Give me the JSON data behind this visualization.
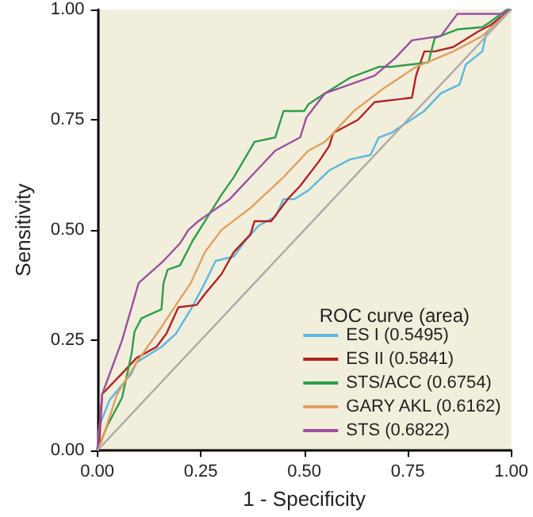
{
  "chart_data": {
    "type": "line",
    "xlabel": "1 - Specificity",
    "ylabel": "Sensitivity",
    "legend_title": "ROC curve (area)",
    "legend": "bottom right",
    "grid": false,
    "marker": "none",
    "line_style": "solid",
    "xlim": [
      0,
      1
    ],
    "ylim": [
      0,
      1
    ],
    "xticks": [
      {
        "value": 0,
        "label": "0.00"
      },
      {
        "value": 0.25,
        "label": "0.25"
      },
      {
        "value": 0.5,
        "label": "0.50"
      },
      {
        "value": 0.75,
        "label": "0.75"
      },
      {
        "value": 1,
        "label": "1.00"
      }
    ],
    "yticks": [
      {
        "value": 0,
        "label": "0.00"
      },
      {
        "value": 0.25,
        "label": "0.25"
      },
      {
        "value": 0.5,
        "label": "0.50"
      },
      {
        "value": 0.75,
        "label": "0.75"
      },
      {
        "value": 1,
        "label": "1.00"
      }
    ],
    "series": [
      {
        "name": "ES I (0.5495)",
        "color": "#5bb8e0",
        "x": [
          0,
          0.005,
          0.03,
          0.083,
          0.095,
          0.155,
          0.19,
          0.226,
          0.26,
          0.286,
          0.33,
          0.357,
          0.39,
          0.43,
          0.45,
          0.476,
          0.51,
          0.56,
          0.61,
          0.66,
          0.68,
          0.71,
          0.79,
          0.83,
          0.875,
          0.89,
          0.93,
          0.94,
          0.976,
          1
        ],
        "values": [
          0,
          0.056,
          0.115,
          0.175,
          0.2,
          0.235,
          0.265,
          0.32,
          0.38,
          0.43,
          0.44,
          0.475,
          0.51,
          0.53,
          0.57,
          0.57,
          0.59,
          0.635,
          0.66,
          0.67,
          0.71,
          0.72,
          0.77,
          0.81,
          0.83,
          0.875,
          0.905,
          0.946,
          0.99,
          1
        ]
      },
      {
        "name": "ES II (0.5841)",
        "color": "#b22222",
        "x": [
          0,
          0.005,
          0.012,
          0.06,
          0.095,
          0.143,
          0.167,
          0.196,
          0.24,
          0.26,
          0.3,
          0.33,
          0.37,
          0.38,
          0.42,
          0.46,
          0.49,
          0.535,
          0.56,
          0.57,
          0.63,
          0.67,
          0.76,
          0.77,
          0.79,
          0.815,
          0.86,
          0.92,
          0.95,
          1
        ],
        "values": [
          0,
          0.02,
          0.128,
          0.175,
          0.21,
          0.235,
          0.265,
          0.325,
          0.33,
          0.355,
          0.4,
          0.45,
          0.49,
          0.52,
          0.52,
          0.57,
          0.6,
          0.655,
          0.69,
          0.72,
          0.75,
          0.79,
          0.8,
          0.85,
          0.905,
          0.905,
          0.915,
          0.95,
          0.965,
          1
        ]
      },
      {
        "name": "STS/ACC (0.6754)",
        "color": "#2e9e4a",
        "x": [
          0,
          0.024,
          0.06,
          0.083,
          0.09,
          0.107,
          0.155,
          0.16,
          0.17,
          0.2,
          0.23,
          0.26,
          0.3,
          0.33,
          0.38,
          0.43,
          0.45,
          0.5,
          0.51,
          0.55,
          0.61,
          0.68,
          0.71,
          0.8,
          0.815,
          0.87,
          0.93,
          0.946,
          0.99,
          1
        ],
        "values": [
          0,
          0.056,
          0.12,
          0.22,
          0.27,
          0.3,
          0.32,
          0.38,
          0.41,
          0.42,
          0.475,
          0.52,
          0.58,
          0.62,
          0.7,
          0.71,
          0.77,
          0.77,
          0.785,
          0.81,
          0.845,
          0.87,
          0.87,
          0.88,
          0.935,
          0.955,
          0.96,
          0.97,
          1,
          1
        ]
      },
      {
        "name": "GARY AKL (0.6162)",
        "color": "#e0a060",
        "x": [
          0,
          0.01,
          0.048,
          0.095,
          0.155,
          0.19,
          0.226,
          0.26,
          0.3,
          0.37,
          0.45,
          0.51,
          0.55,
          0.62,
          0.69,
          0.77,
          0.86,
          0.93,
          1
        ],
        "values": [
          0,
          0.02,
          0.128,
          0.2,
          0.28,
          0.33,
          0.38,
          0.45,
          0.5,
          0.55,
          0.62,
          0.68,
          0.7,
          0.77,
          0.82,
          0.87,
          0.905,
          0.94,
          1
        ]
      },
      {
        "name": "STS (0.6822)",
        "color": "#9b4fa0",
        "x": [
          0,
          0.012,
          0.06,
          0.1,
          0.16,
          0.2,
          0.22,
          0.244,
          0.32,
          0.38,
          0.43,
          0.49,
          0.505,
          0.55,
          0.61,
          0.67,
          0.72,
          0.76,
          0.83,
          0.87,
          0.976,
          1
        ],
        "values": [
          0,
          0.128,
          0.25,
          0.38,
          0.43,
          0.47,
          0.5,
          0.52,
          0.57,
          0.63,
          0.68,
          0.71,
          0.755,
          0.81,
          0.83,
          0.85,
          0.89,
          0.93,
          0.94,
          0.99,
          0.99,
          1
        ]
      },
      {
        "color": "#aaaaaa",
        "x": [
          0,
          1
        ],
        "values": [
          0,
          1
        ]
      }
    ]
  }
}
